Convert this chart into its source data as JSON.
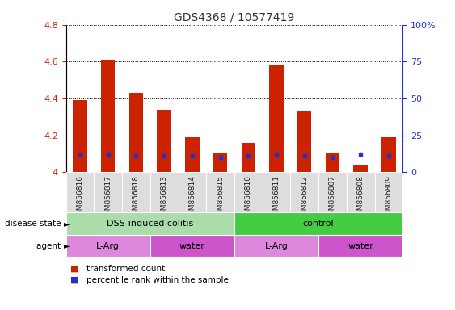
{
  "title": "GDS4368 / 10577419",
  "samples": [
    "GSM856816",
    "GSM856817",
    "GSM856818",
    "GSM856813",
    "GSM856814",
    "GSM856815",
    "GSM856810",
    "GSM856811",
    "GSM856812",
    "GSM856807",
    "GSM856808",
    "GSM856809"
  ],
  "red_values": [
    4.39,
    4.61,
    4.43,
    4.34,
    4.19,
    4.1,
    4.16,
    4.58,
    4.33,
    4.1,
    4.04,
    4.19
  ],
  "blue_pct": [
    12,
    12,
    11,
    11,
    11,
    10,
    11,
    12,
    11,
    10,
    12,
    11
  ],
  "ymin": 4.0,
  "ymax": 4.8,
  "yticks": [
    4.0,
    4.2,
    4.4,
    4.6,
    4.8
  ],
  "ytick_labels": [
    "4",
    "4.2",
    "4.4",
    "4.6",
    "4.8"
  ],
  "y2ticks": [
    0,
    25,
    50,
    75,
    100
  ],
  "y2tick_labels": [
    "0",
    "25",
    "50",
    "75",
    "100%"
  ],
  "red_color": "#cc2200",
  "blue_color": "#2233cc",
  "bar_width": 0.5,
  "disease_state_groups": [
    {
      "label": "DSS-induced colitis",
      "start": 0,
      "end": 6,
      "color": "#aaddaa"
    },
    {
      "label": "control",
      "start": 6,
      "end": 12,
      "color": "#44cc44"
    }
  ],
  "agent_groups": [
    {
      "label": "L-Arg",
      "start": 0,
      "end": 3,
      "color": "#dd88dd"
    },
    {
      "label": "water",
      "start": 3,
      "end": 6,
      "color": "#cc55cc"
    },
    {
      "label": "L-Arg",
      "start": 6,
      "end": 9,
      "color": "#dd88dd"
    },
    {
      "label": "water",
      "start": 9,
      "end": 12,
      "color": "#cc55cc"
    }
  ],
  "ylabel_left_color": "#cc2200",
  "ylabel_right_color": "#2233cc"
}
